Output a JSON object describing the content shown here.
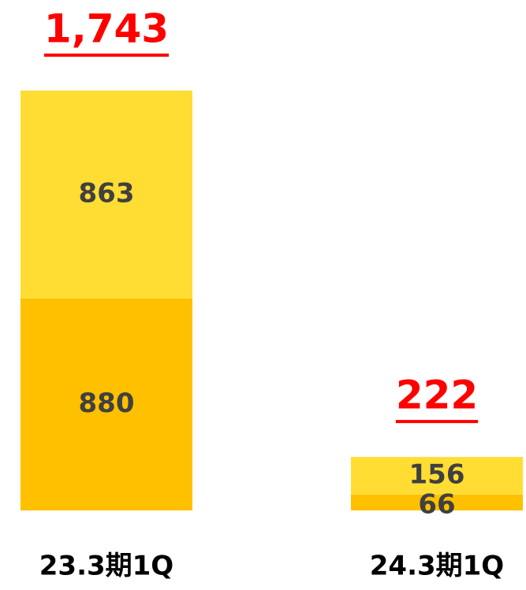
{
  "chart_data": {
    "type": "stacked_bar",
    "categories": [
      "23.3期1Q",
      "24.3期1Q"
    ],
    "series": [
      {
        "color": "#FFC000",
        "values": [
          880,
          66
        ]
      },
      {
        "color": "#FFDD33",
        "values": [
          863,
          156
        ]
      }
    ],
    "totals": {
      "values": [
        1743,
        222
      ],
      "value_labels": [
        "1,743",
        "222"
      ],
      "color": "#FF0000"
    },
    "label_color": "#404040"
  }
}
